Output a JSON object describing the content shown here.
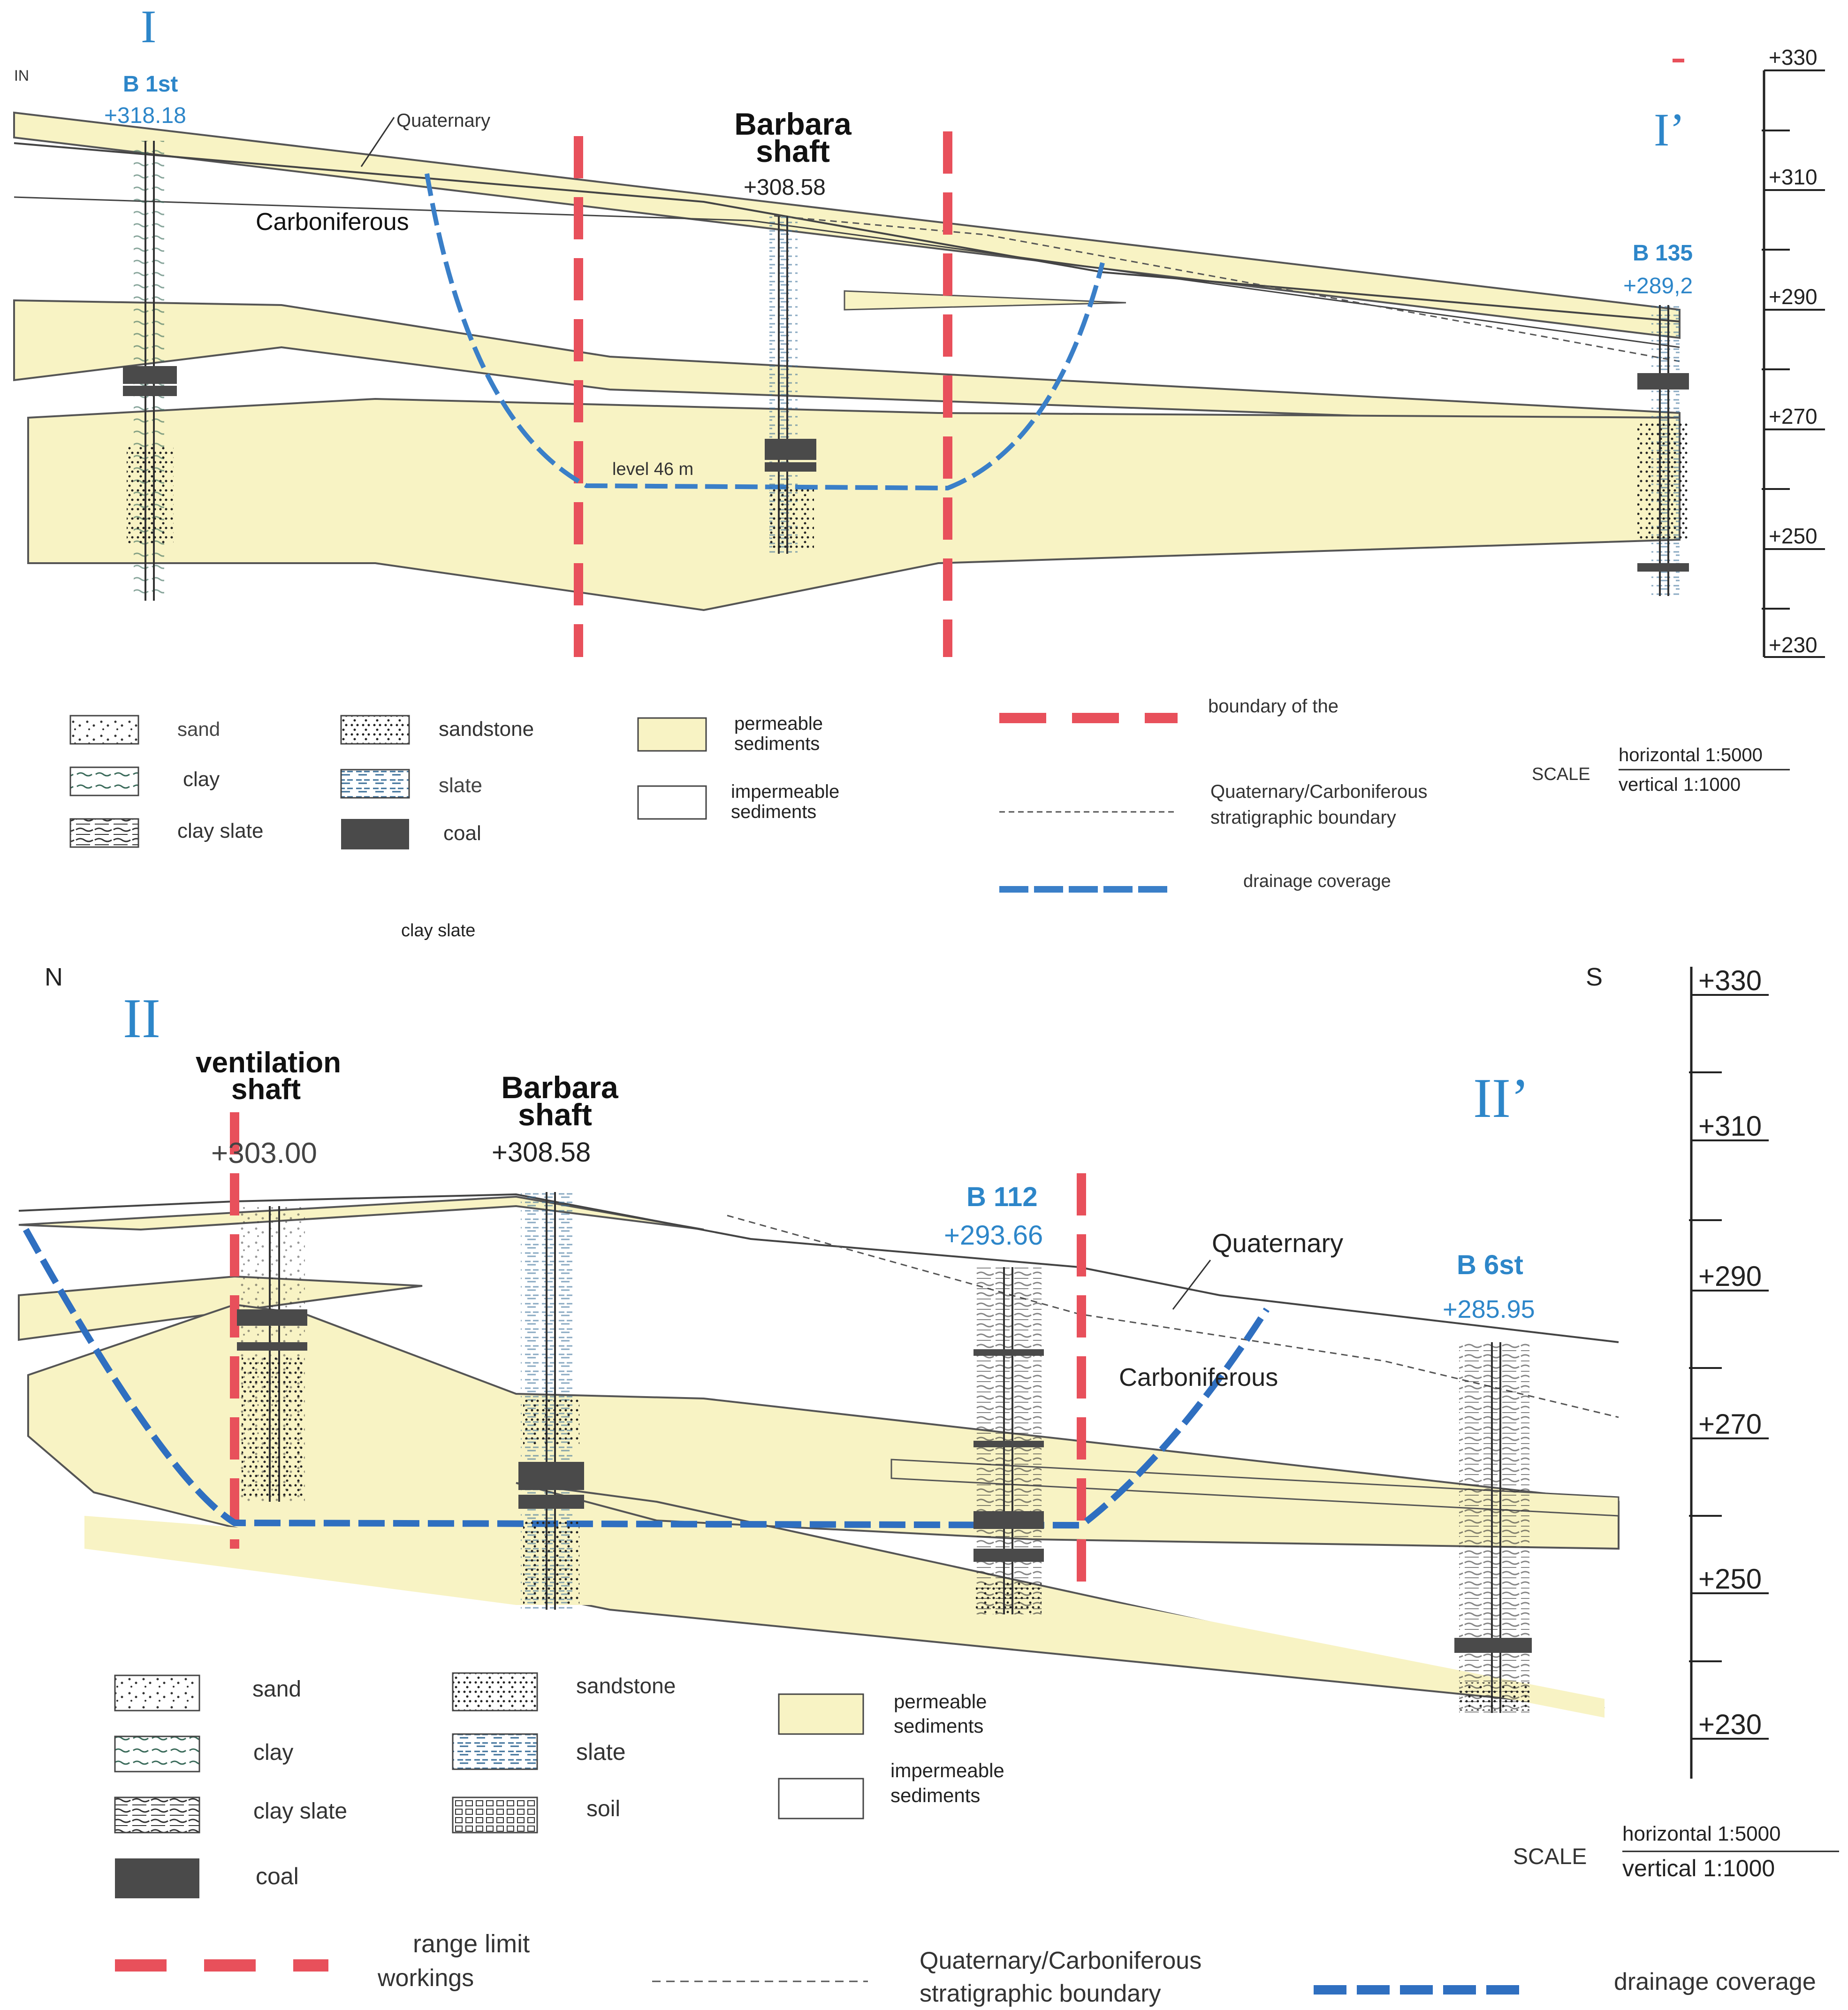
{
  "section1": {
    "label_start": "I",
    "label_end": "I’",
    "direction": "IN",
    "stray_label": "clay slate",
    "boreholes": [
      {
        "name": "B 1st",
        "elevation": "+318.18"
      },
      {
        "name": "Barbara shaft",
        "name_line1": "Barbara",
        "name_line2": "shaft",
        "elevation": "+308.58"
      },
      {
        "name": "B 135",
        "elevation": "+289,2"
      }
    ],
    "labels": {
      "quaternary": "Quaternary",
      "carboniferous": "Carboniferous",
      "level": "level 46 m"
    },
    "scale_ticks": [
      "+330",
      "+310",
      "+290",
      "+270",
      "+250",
      "+230"
    ],
    "legend": {
      "sand": "sand",
      "clay": "clay",
      "clay_slate": "clay slate",
      "sandstone": "sandstone",
      "slate": "slate",
      "coal": "coal",
      "permeable_1": "permeable",
      "permeable_2": "sediments",
      "impermeable_1": "impermeable",
      "impermeable_2": "sediments",
      "boundary": "boundary of the",
      "strat_1": "Quaternary/Carboniferous",
      "strat_2": "stratigraphic boundary",
      "drainage": "drainage coverage"
    },
    "scale": {
      "label": "SCALE",
      "horizontal": "horizontal 1:5000",
      "vertical": "vertical 1:1000"
    }
  },
  "section2": {
    "label_start": "II",
    "label_end": "II’",
    "dir_north": "N",
    "dir_south": "S",
    "boreholes": [
      {
        "name_line1": "ventilation",
        "name_line2": "shaft",
        "elevation": "+303.00"
      },
      {
        "name_line1": "Barbara",
        "name_line2": "shaft",
        "elevation": "+308.58"
      },
      {
        "name": "B 112",
        "elevation": "+293.66"
      },
      {
        "name": "B 6st",
        "elevation": "+285.95"
      }
    ],
    "labels": {
      "quaternary": "Quaternary",
      "carboniferous": "Carboniferous"
    },
    "scale_ticks": [
      "+330",
      "+310",
      "+290",
      "+270",
      "+250",
      "+230"
    ],
    "legend": {
      "sand": "sand",
      "clay": "clay",
      "clay_slate": "clay slate",
      "coal": "coal",
      "sandstone": "sandstone",
      "slate": "slate",
      "soil": "soil",
      "permeable_1": "permeable",
      "permeable_2": "sediments",
      "impermeable_1": "impermeable",
      "impermeable_2": "sediments",
      "range_1": "range limit",
      "range_2": "workings",
      "strat_1": "Quaternary/Carboniferous",
      "strat_2": "stratigraphic boundary",
      "drainage": "drainage coverage"
    },
    "scale": {
      "label": "SCALE",
      "horizontal": "horizontal 1:5000",
      "vertical": "vertical 1:1000"
    }
  },
  "colors": {
    "permeable_fill": "#f8f3c4",
    "boundary_red": "#e8505b",
    "drainage_blue": "#3a7fc8",
    "borehole_blue": "#2d86c9",
    "coal": "#4a4a4a"
  }
}
